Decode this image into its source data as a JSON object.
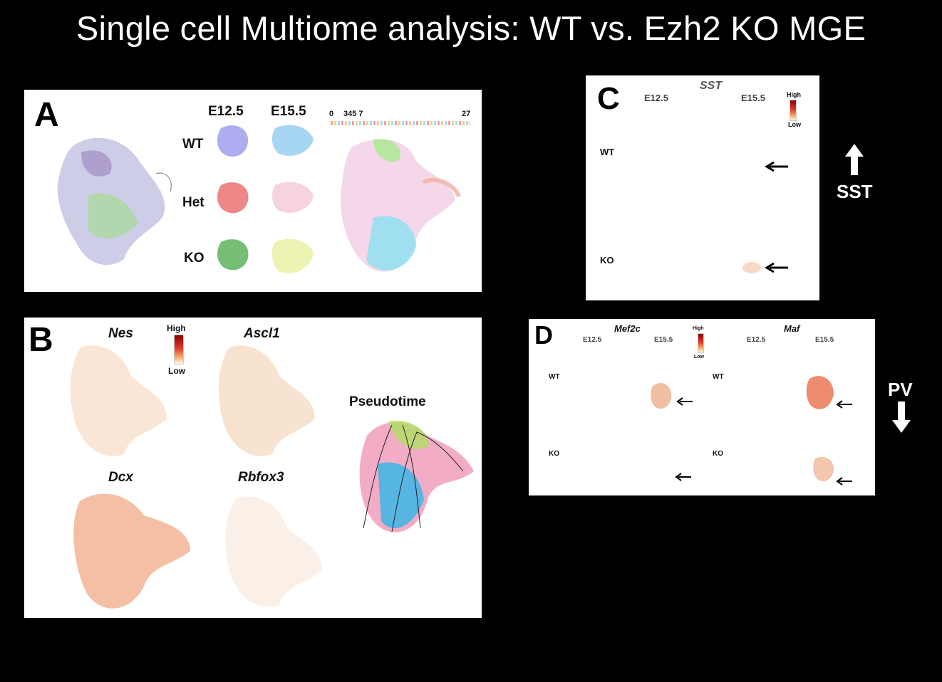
{
  "title": "Single cell Multiome analysis: WT vs. Ezh2 KO MGE",
  "panel_a": {
    "letter": "A",
    "col_e12": "E12.5",
    "col_e15": "E15.5",
    "rows": [
      "WT",
      "Het",
      "KO"
    ],
    "scale": {
      "min": "0",
      "marks": "345 7",
      "max": "27"
    }
  },
  "panel_b": {
    "letter": "B",
    "genes": [
      "Nes",
      "Ascl1",
      "Dcx",
      "Rbfox3"
    ],
    "legend_high": "High",
    "legend_low": "Low",
    "pseudotime": "Pseudotime"
  },
  "panel_c": {
    "letter": "C",
    "gene": "SST",
    "col_e12": "E12.5",
    "col_e15": "E15.5",
    "rows": [
      "WT",
      "KO"
    ],
    "legend_high": "High",
    "legend_low": "Low"
  },
  "panel_d": {
    "letter": "D",
    "gene1": "Mef2c",
    "gene2": "Maf",
    "col_e12": "E12.5",
    "col_e15": "E15.5",
    "rows": [
      "WT",
      "KO"
    ],
    "legend_high": "High",
    "legend_low": "Low"
  },
  "side": {
    "sst": "SST",
    "pv": "PV"
  }
}
